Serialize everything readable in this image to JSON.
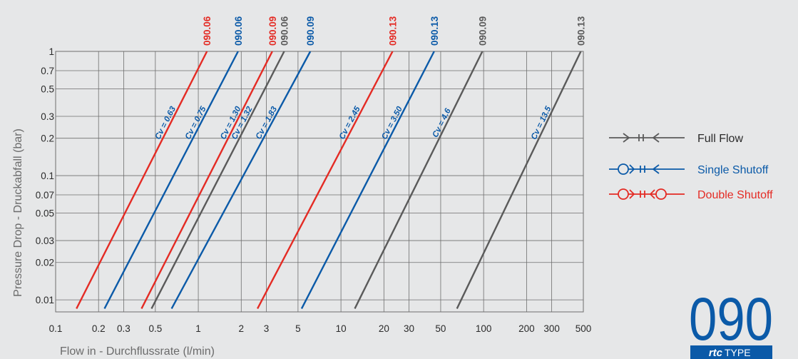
{
  "colors": {
    "background": "#e6e7e8",
    "grid": "#6e6e6e",
    "red": "#e42b24",
    "blue": "#0b5aa8",
    "gray": "#5a5a5a",
    "text": "#2a2a2a",
    "axis_title": "#6b6b6b"
  },
  "chart_data": {
    "type": "line",
    "xscale": "log",
    "yscale": "log",
    "xlim": [
      0.1,
      500
    ],
    "ylim": [
      0.008,
      1
    ],
    "grid": true,
    "xlabel": "Flow in - Durchflussrate (l/min)",
    "ylabel": "Pressure Drop - Druckabfall (bar)",
    "x_tick_values": [
      0.1,
      0.2,
      0.3,
      0.5,
      1,
      2,
      3,
      5,
      10,
      20,
      30,
      50,
      100,
      200,
      300,
      500
    ],
    "x_tick_labels": [
      "0.1",
      "0.2",
      "0.3",
      "0.5",
      "1",
      "2",
      "3",
      "5",
      "10",
      "20",
      "30",
      "50",
      "100",
      "200",
      "300",
      "500"
    ],
    "y_tick_values": [
      1,
      0.7,
      0.5,
      0.3,
      0.2,
      0.1,
      0.07,
      0.05,
      0.03,
      0.02,
      0.01
    ],
    "y_tick_labels": [
      "1",
      "0.7",
      "0.5",
      "0.3",
      "0.2",
      "0.1",
      "0.07",
      "0.05",
      "0.03",
      "0.02",
      "0.01"
    ],
    "series": [
      {
        "size": "090.06",
        "type": "Double Shutoff",
        "color": "red",
        "cv_label": "Cv = 0.63",
        "x": [
          0.14,
          1.15
        ],
        "y": [
          0.0085,
          1
        ]
      },
      {
        "size": "090.06",
        "type": "Single Shutoff",
        "color": "blue",
        "cv_label": "Cv = 0.75",
        "x": [
          0.22,
          1.9
        ],
        "y": [
          0.0085,
          1
        ]
      },
      {
        "size": "090.09",
        "type": "Double Shutoff",
        "color": "red",
        "cv_label": "Cv = 1.30",
        "x": [
          0.4,
          3.3
        ],
        "y": [
          0.0085,
          1
        ]
      },
      {
        "size": "090.06",
        "type": "Full Flow",
        "color": "gray",
        "cv_label": "Cv = 1.32",
        "x": [
          0.47,
          4.0
        ],
        "y": [
          0.0085,
          1
        ]
      },
      {
        "size": "090.09",
        "type": "Single Shutoff",
        "color": "blue",
        "cv_label": "Cv = 1.83",
        "x": [
          0.65,
          6.1
        ],
        "y": [
          0.0085,
          1
        ]
      },
      {
        "size": "090.13",
        "type": "Double Shutoff",
        "color": "red",
        "cv_label": "Cv = 2.45",
        "x": [
          2.6,
          23
        ],
        "y": [
          0.0085,
          1
        ]
      },
      {
        "size": "090.13",
        "type": "Single Shutoff",
        "color": "blue",
        "cv_label": "Cv = 3.50",
        "x": [
          5.3,
          45
        ],
        "y": [
          0.0085,
          1
        ]
      },
      {
        "size": "090.09",
        "type": "Full Flow",
        "color": "gray",
        "cv_label": "Cv = 4.6",
        "x": [
          12.5,
          98
        ],
        "y": [
          0.0085,
          1
        ]
      },
      {
        "size": "090.13",
        "type": "Full Flow",
        "color": "gray",
        "cv_label": "Cv = 13.5",
        "x": [
          65,
          480
        ],
        "y": [
          0.0085,
          1
        ]
      }
    ],
    "top_labels": [
      {
        "text": "090.06",
        "color": "red",
        "x": 1.15
      },
      {
        "text": "090.06",
        "color": "blue",
        "x": 1.9
      },
      {
        "text": "090.09",
        "color": "red",
        "x": 3.3
      },
      {
        "text": "090.06",
        "color": "gray",
        "x": 4.0
      },
      {
        "text": "090.09",
        "color": "blue",
        "x": 6.1
      },
      {
        "text": "090.13",
        "color": "red",
        "x": 23
      },
      {
        "text": "090.13",
        "color": "blue",
        "x": 45
      },
      {
        "text": "090.09",
        "color": "gray",
        "x": 98
      },
      {
        "text": "090.13",
        "color": "gray",
        "x": 480
      }
    ],
    "legend": {
      "placement": "right",
      "entries": [
        {
          "label": "Full Flow",
          "color": "gray",
          "symbol": "full"
        },
        {
          "label": "Single Shutoff",
          "color": "blue",
          "symbol": "single"
        },
        {
          "label": "Double Shutoff",
          "color": "red",
          "symbol": "double"
        }
      ]
    }
  },
  "logo": {
    "number": "090",
    "brand": "rtc",
    "suffix": "TYPE",
    "color": "#0b5aa8"
  }
}
